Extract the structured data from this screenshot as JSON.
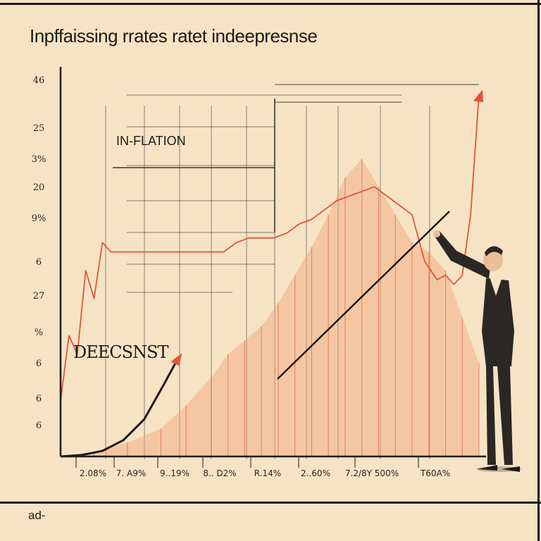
{
  "chart_data": {
    "type": "area",
    "title": "Inpffaissing rrates ratet indeepresnse",
    "xlabel": "",
    "ylabel": "",
    "y_tick_labels": [
      "46",
      "25",
      "3%",
      "20",
      "9%",
      "6",
      "27",
      "%",
      "6",
      "6",
      "6"
    ],
    "x_tick_labels": [
      "2.08%",
      "7. A9%",
      "9..19%",
      "8.. D2%",
      "R.14%",
      "2..60%",
      "7.2/8Y 500%",
      "T60A%"
    ],
    "annotations": [
      "IN-FLATION",
      "DEECSNST"
    ],
    "grid": true,
    "series": [
      {
        "name": "IN-FLATION",
        "color": "#e0553a",
        "style": "line",
        "x": [
          0,
          2,
          4,
          6,
          8,
          10,
          12,
          15,
          18,
          21,
          24,
          27,
          30,
          33,
          36,
          39,
          42,
          45,
          48,
          51,
          54,
          57,
          60,
          63,
          66,
          69,
          72,
          75,
          78,
          81,
          84,
          87,
          90,
          92,
          94,
          96,
          98,
          100
        ],
        "y": [
          12,
          26,
          22,
          40,
          34,
          46,
          44,
          44,
          44,
          44,
          44,
          44,
          44,
          44,
          44,
          44,
          46,
          47,
          47,
          47,
          48,
          50,
          51,
          53,
          55,
          56,
          57,
          58,
          56,
          54,
          52,
          42,
          38,
          39,
          37,
          39,
          52,
          78
        ]
      },
      {
        "name": "",
        "color": "#f2a37a",
        "style": "area",
        "x": [
          0,
          8,
          16,
          24,
          30,
          36,
          40,
          44,
          48,
          52,
          56,
          60,
          64,
          68,
          72,
          76,
          80,
          84,
          88,
          92,
          96,
          100
        ],
        "y": [
          0,
          1,
          3,
          6,
          11,
          17,
          22,
          25,
          28,
          33,
          39,
          45,
          52,
          60,
          64,
          58,
          52,
          46,
          44,
          40,
          30,
          20
        ]
      },
      {
        "name": "DEECSNST",
        "color": "#1d1a17",
        "style": "line",
        "x": [
          0,
          5,
          10,
          15,
          20,
          25,
          28
        ],
        "y": [
          0,
          0.3,
          1.2,
          3.5,
          8,
          16,
          21
        ]
      }
    ]
  },
  "footer": {
    "text": "ad-"
  },
  "colors": {
    "background": "#f6e3c4",
    "accent": "#e0553a",
    "area": "#f2a37a",
    "ink": "#1d1a17"
  }
}
